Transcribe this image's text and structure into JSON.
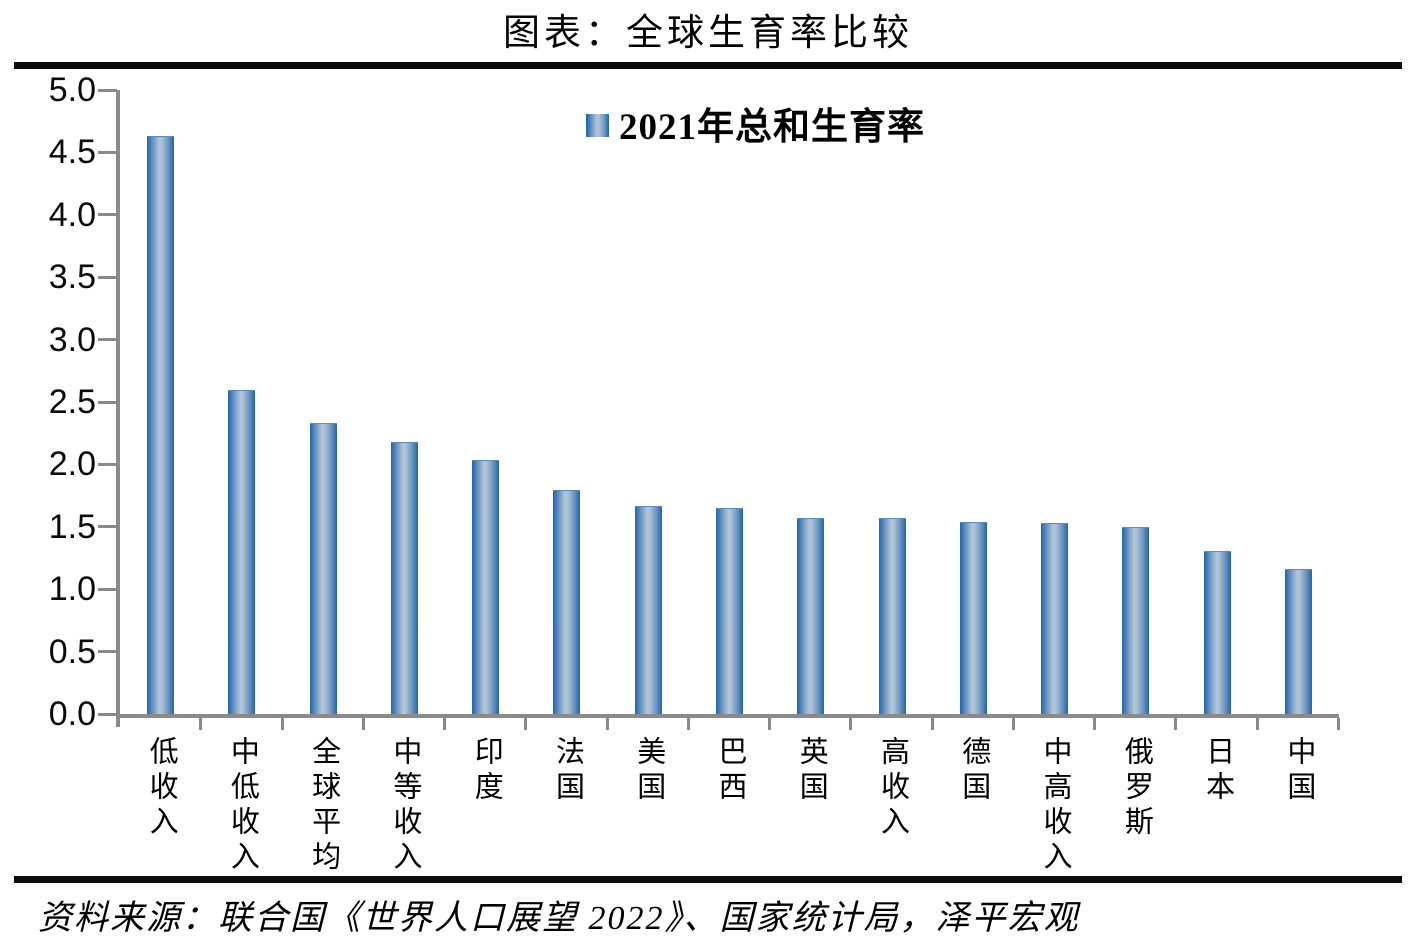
{
  "header": {
    "title": "图表：全球生育率比较"
  },
  "legend": {
    "label": "2021年总和生育率"
  },
  "chart_data": {
    "type": "bar",
    "title": "图表：全球生育率比较",
    "series_name": "2021年总和生育率",
    "categories": [
      "低收入",
      "中低收入",
      "全球平均",
      "中等收入",
      "印度",
      "法国",
      "美国",
      "巴西",
      "英国",
      "高收入",
      "德国",
      "中高收入",
      "俄罗斯",
      "日本",
      "中国"
    ],
    "values": [
      4.62,
      2.59,
      2.32,
      2.17,
      2.03,
      1.79,
      1.66,
      1.64,
      1.56,
      1.56,
      1.53,
      1.52,
      1.49,
      1.3,
      1.15
    ],
    "xlabel": "",
    "ylabel": "",
    "ylim": [
      0,
      5
    ],
    "y_ticks": [
      "5.0",
      "4.5",
      "4.0",
      "3.5",
      "3.0",
      "2.5",
      "2.0",
      "1.5",
      "1.0",
      "0.5",
      "0.0"
    ],
    "grid": false,
    "legend_position": "top-center",
    "colors": {
      "bar_edge": "#2565AE",
      "bar_center": "#B3C6DA",
      "axis": "#8A8A8A",
      "rule": "#0B0B0B",
      "text": "#000000"
    }
  },
  "footer": {
    "source": "资料来源：联合国《世界人口展望 2022》、国家统计局，泽平宏观"
  }
}
